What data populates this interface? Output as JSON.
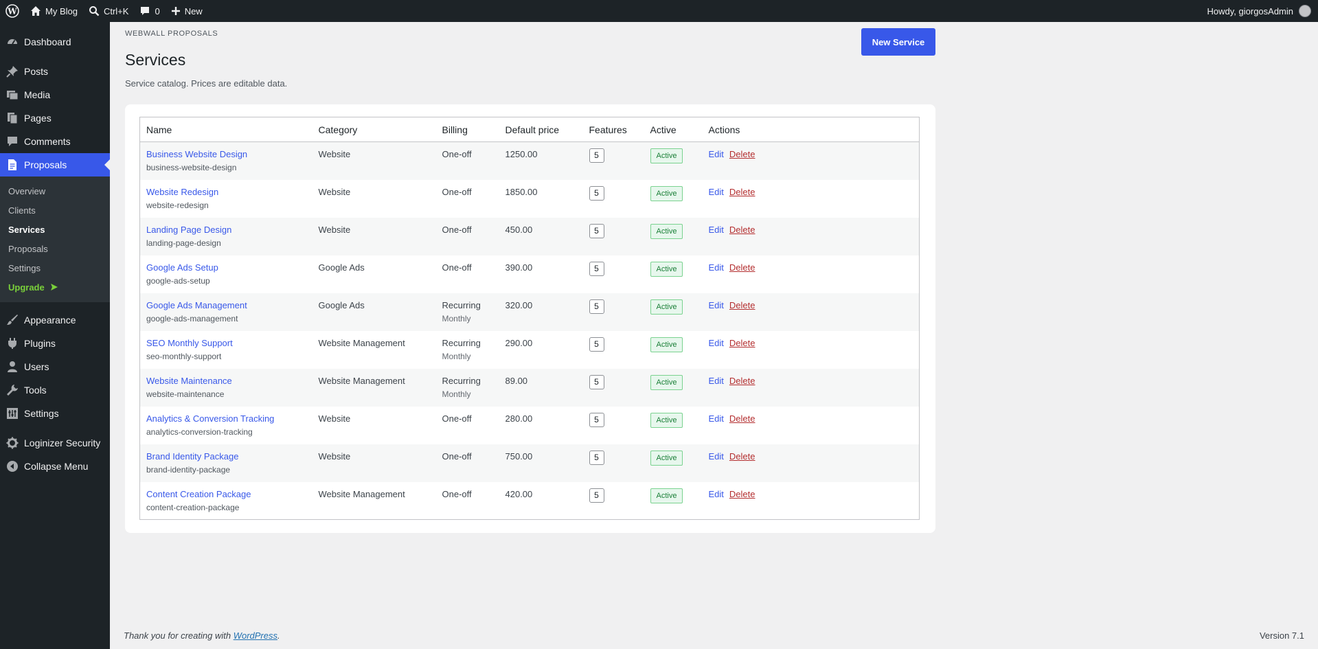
{
  "adminbar": {
    "site_name": "My Blog",
    "search_label": "Ctrl+K",
    "comments_count": "0",
    "new_label": "New",
    "howdy": "Howdy, giorgosAdmin"
  },
  "sidebar": {
    "items": [
      {
        "label": "Dashboard",
        "icon": "dashboard-icon"
      },
      {
        "label": "Posts",
        "icon": "pin-icon"
      },
      {
        "label": "Media",
        "icon": "media-icon"
      },
      {
        "label": "Pages",
        "icon": "pages-icon"
      },
      {
        "label": "Comments",
        "icon": "comment-icon"
      },
      {
        "label": "Proposals",
        "icon": "document-icon"
      }
    ],
    "proposals_sub": [
      "Overview",
      "Clients",
      "Services",
      "Proposals",
      "Settings",
      "Upgrade"
    ],
    "lower_items": [
      {
        "label": "Appearance",
        "icon": "brush-icon"
      },
      {
        "label": "Plugins",
        "icon": "plugin-icon"
      },
      {
        "label": "Users",
        "icon": "user-icon"
      },
      {
        "label": "Tools",
        "icon": "wrench-icon"
      },
      {
        "label": "Settings",
        "icon": "settings-icon"
      }
    ],
    "security_label": "Loginizer Security",
    "collapse_label": "Collapse Menu"
  },
  "page": {
    "eyebrow": "WEBWALL PROPOSALS",
    "title": "Services",
    "description": "Service catalog. Prices are editable data.",
    "new_button": "New Service"
  },
  "table": {
    "headers": [
      "Name",
      "Category",
      "Billing",
      "Default price",
      "Features",
      "Active",
      "Actions"
    ],
    "rows": [
      {
        "name": "Business Website Design",
        "slug": "business-website-design",
        "category": "Website",
        "billing": "One-off",
        "billing_sub": "",
        "price": "1250.00",
        "features": "5",
        "active": "Active"
      },
      {
        "name": "Website Redesign",
        "slug": "website-redesign",
        "category": "Website",
        "billing": "One-off",
        "billing_sub": "",
        "price": "1850.00",
        "features": "5",
        "active": "Active"
      },
      {
        "name": "Landing Page Design",
        "slug": "landing-page-design",
        "category": "Website",
        "billing": "One-off",
        "billing_sub": "",
        "price": "450.00",
        "features": "5",
        "active": "Active"
      },
      {
        "name": "Google Ads Setup",
        "slug": "google-ads-setup",
        "category": "Google Ads",
        "billing": "One-off",
        "billing_sub": "",
        "price": "390.00",
        "features": "5",
        "active": "Active"
      },
      {
        "name": "Google Ads Management",
        "slug": "google-ads-management",
        "category": "Google Ads",
        "billing": "Recurring",
        "billing_sub": "Monthly",
        "price": "320.00",
        "features": "5",
        "active": "Active"
      },
      {
        "name": "SEO Monthly Support",
        "slug": "seo-monthly-support",
        "category": "Website Management",
        "billing": "Recurring",
        "billing_sub": "Monthly",
        "price": "290.00",
        "features": "5",
        "active": "Active"
      },
      {
        "name": "Website Maintenance",
        "slug": "website-maintenance",
        "category": "Website Management",
        "billing": "Recurring",
        "billing_sub": "Monthly",
        "price": "89.00",
        "features": "5",
        "active": "Active"
      },
      {
        "name": "Analytics & Conversion Tracking",
        "slug": "analytics-conversion-tracking",
        "category": "Website",
        "billing": "One-off",
        "billing_sub": "",
        "price": "280.00",
        "features": "5",
        "active": "Active"
      },
      {
        "name": "Brand Identity Package",
        "slug": "brand-identity-package",
        "category": "Website",
        "billing": "One-off",
        "billing_sub": "",
        "price": "750.00",
        "features": "5",
        "active": "Active"
      },
      {
        "name": "Content Creation Package",
        "slug": "content-creation-package",
        "category": "Website Management",
        "billing": "One-off",
        "billing_sub": "",
        "price": "420.00",
        "features": "5",
        "active": "Active"
      }
    ],
    "edit_label": "Edit",
    "delete_label": "Delete"
  },
  "footer": {
    "thanks_prefix": "Thank you for creating with ",
    "wordpress_link": "WordPress",
    "thanks_suffix": ".",
    "version": "Version 7.1"
  },
  "colors": {
    "accent": "#3858e9",
    "adminbar_bg": "#1d2327",
    "delete": "#b32d2e",
    "active_badge": "#1a7f37"
  }
}
